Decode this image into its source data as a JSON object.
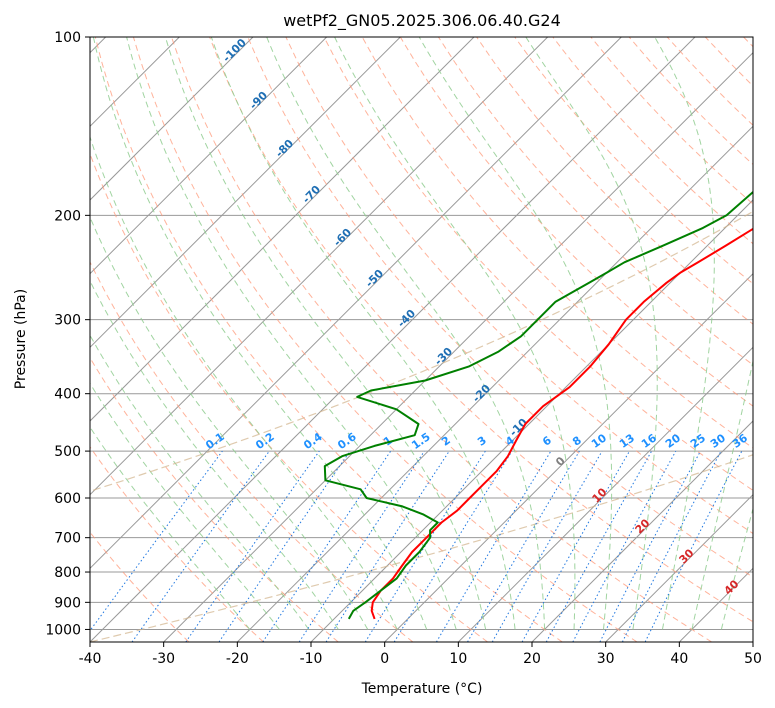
{
  "chart_data": {
    "type": "line",
    "title": "wetPf2_GN05.2025.306.06.40.G24",
    "xlabel": "Temperature (°C)",
    "ylabel": "Pressure (hPa)",
    "xlim": [
      -40,
      50
    ],
    "ylim": [
      1050,
      100
    ],
    "y_scale": "log",
    "x_ticks": [
      -40,
      -30,
      -20,
      -10,
      0,
      10,
      20,
      30,
      40,
      50
    ],
    "y_ticks": [
      100,
      200,
      300,
      400,
      500,
      600,
      700,
      800,
      900,
      1000
    ],
    "grid": true,
    "skew": "45 degree skewed isotherms",
    "series": [
      {
        "role": "temperature",
        "color": "#ff0000",
        "points": [
          [
            960,
            -4.5
          ],
          [
            930,
            -6
          ],
          [
            900,
            -7
          ],
          [
            860,
            -7.5
          ],
          [
            820,
            -7.5
          ],
          [
            780,
            -8
          ],
          [
            740,
            -8.5
          ],
          [
            700,
            -8.5
          ],
          [
            660,
            -8.5
          ],
          [
            630,
            -8
          ],
          [
            600,
            -8
          ],
          [
            570,
            -8
          ],
          [
            540,
            -8
          ],
          [
            510,
            -8.5
          ],
          [
            480,
            -9.5
          ],
          [
            450,
            -10.5
          ],
          [
            420,
            -10.5
          ],
          [
            390,
            -9.5
          ],
          [
            360,
            -9.5
          ],
          [
            330,
            -10
          ],
          [
            300,
            -11
          ],
          [
            280,
            -11
          ],
          [
            260,
            -10.5
          ],
          [
            250,
            -10
          ],
          [
            240,
            -9
          ],
          [
            225,
            -7.5
          ],
          [
            210,
            -6
          ],
          [
            195,
            -5
          ],
          [
            175,
            -3
          ],
          [
            160,
            -2
          ],
          [
            145,
            -1.5
          ],
          [
            130,
            -1.5
          ],
          [
            115,
            0.5
          ],
          [
            100,
            1
          ]
        ]
      },
      {
        "role": "dewpoint",
        "color": "#008000",
        "points": [
          [
            960,
            -8
          ],
          [
            930,
            -8.5
          ],
          [
            900,
            -8
          ],
          [
            860,
            -7.5
          ],
          [
            820,
            -7
          ],
          [
            780,
            -7.5
          ],
          [
            740,
            -7.5
          ],
          [
            700,
            -8
          ],
          [
            680,
            -9
          ],
          [
            660,
            -9
          ],
          [
            640,
            -12
          ],
          [
            620,
            -16
          ],
          [
            600,
            -22
          ],
          [
            580,
            -24
          ],
          [
            560,
            -30
          ],
          [
            530,
            -32
          ],
          [
            510,
            -31
          ],
          [
            490,
            -28
          ],
          [
            470,
            -24
          ],
          [
            450,
            -25
          ],
          [
            425,
            -30
          ],
          [
            405,
            -37
          ],
          [
            395,
            -36
          ],
          [
            380,
            -30
          ],
          [
            360,
            -26
          ],
          [
            340,
            -24
          ],
          [
            320,
            -23
          ],
          [
            300,
            -23
          ],
          [
            280,
            -23
          ],
          [
            260,
            -21
          ],
          [
            250,
            -20
          ],
          [
            240,
            -19
          ],
          [
            225,
            -16
          ],
          [
            210,
            -13
          ],
          [
            200,
            -11.5
          ],
          [
            180,
            -11
          ],
          [
            165,
            -10
          ],
          [
            145,
            -5
          ],
          [
            130,
            -3.5
          ],
          [
            115,
            -1.5
          ],
          [
            100,
            1.5
          ]
        ]
      }
    ],
    "dry_adiabat_labels": [
      "-100",
      "-90",
      "-80",
      "-70",
      "-60",
      "-50",
      "-40",
      "-30",
      "-20",
      "-10"
    ],
    "mixing_ratio_labels": [
      "0.1",
      "0.2",
      "0.4",
      "0.6",
      "1",
      "1.5",
      "2",
      "3",
      "4",
      "6",
      "8",
      "10",
      "13",
      "16",
      "20",
      "25",
      "30",
      "36"
    ],
    "moist_adiabat_labels": [
      "0",
      "10",
      "20",
      "30",
      "40"
    ],
    "colors": {
      "isotherm": "#999999",
      "dry_adiabat": "#ff9a7a",
      "moist_adiabat": "#90cc90",
      "mixing_ratio": "#1f77e0",
      "dry_adiabat_label": "#1f6fb4",
      "mixing_label": "#1e90ff",
      "moist_label": "#d62728",
      "moist_zero_label": "#7f7f7f",
      "background_curve": "#d2b48c"
    }
  }
}
